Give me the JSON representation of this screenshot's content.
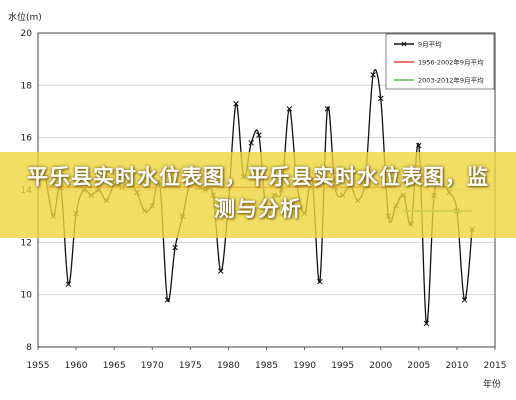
{
  "chart_data": {
    "type": "line",
    "ylabel": "水位(m)",
    "xlabel": "年份",
    "xlim": [
      1955,
      2015
    ],
    "ylim": [
      8,
      20
    ],
    "xticks": [
      "1955",
      "1960",
      "1965",
      "1970",
      "1975",
      "1980",
      "1985",
      "1990",
      "1995",
      "2000",
      "2005",
      "2010",
      "2015"
    ],
    "yticks": [
      "8",
      "10",
      "12",
      "14",
      "16",
      "18",
      "20"
    ],
    "legend_position": "top-right",
    "grid": true,
    "series": [
      {
        "name": "9月平均",
        "color": "#111111",
        "marker": "x",
        "points": [
          [
            1956,
            14.5
          ],
          [
            1957,
            13.0
          ],
          [
            1958,
            14.1
          ],
          [
            1959,
            10.4
          ],
          [
            1960,
            13.1
          ],
          [
            1961,
            14.0
          ],
          [
            1962,
            13.8
          ],
          [
            1963,
            14.0
          ],
          [
            1964,
            13.6
          ],
          [
            1965,
            14.2
          ],
          [
            1966,
            14.1
          ],
          [
            1967,
            14.3
          ],
          [
            1968,
            13.9
          ],
          [
            1969,
            13.2
          ],
          [
            1970,
            13.4
          ],
          [
            1971,
            14.2
          ],
          [
            1972,
            9.8
          ],
          [
            1973,
            11.8
          ],
          [
            1974,
            13.0
          ],
          [
            1975,
            14.3
          ],
          [
            1976,
            14.1
          ],
          [
            1977,
            14.0
          ],
          [
            1978,
            13.8
          ],
          [
            1979,
            10.9
          ],
          [
            1980,
            13.5
          ],
          [
            1981,
            17.3
          ],
          [
            1982,
            14.5
          ],
          [
            1983,
            15.8
          ],
          [
            1984,
            16.1
          ],
          [
            1985,
            13.0
          ],
          [
            1986,
            13.8
          ],
          [
            1987,
            14.0
          ],
          [
            1988,
            17.1
          ],
          [
            1989,
            14.2
          ],
          [
            1990,
            13.1
          ],
          [
            1991,
            14.4
          ],
          [
            1992,
            10.5
          ],
          [
            1993,
            17.1
          ],
          [
            1994,
            14.1
          ],
          [
            1995,
            13.8
          ],
          [
            1996,
            14.2
          ],
          [
            1997,
            13.6
          ],
          [
            1998,
            14.5
          ],
          [
            1999,
            18.4
          ],
          [
            2000,
            17.5
          ],
          [
            2001,
            13.0
          ],
          [
            2002,
            13.4
          ],
          [
            2003,
            13.8
          ],
          [
            2004,
            12.7
          ],
          [
            2005,
            15.7
          ],
          [
            2006,
            8.9
          ],
          [
            2007,
            13.8
          ],
          [
            2008,
            14.2
          ],
          [
            2009,
            13.9
          ],
          [
            2010,
            13.2
          ],
          [
            2011,
            9.8
          ],
          [
            2012,
            12.5
          ]
        ]
      },
      {
        "name": "1956-2002年9月平均",
        "color": "#e04a3c",
        "points": [
          [
            1956,
            14.1
          ],
          [
            2002,
            14.1
          ]
        ]
      },
      {
        "name": "2003-2012年9月平均",
        "color": "#59b95a",
        "points": [
          [
            2003,
            13.2
          ],
          [
            2012,
            13.2
          ]
        ]
      }
    ]
  },
  "banner": {
    "title": "平乐县实时水位表图，平乐县实时水位表图，监测与分析"
  }
}
